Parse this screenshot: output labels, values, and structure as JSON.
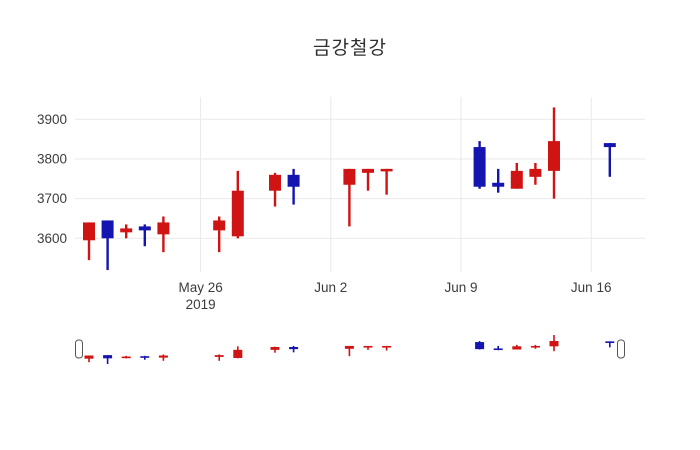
{
  "title": "금강철강",
  "chart_data": {
    "type": "candlestick",
    "title": "금강철강",
    "xlabel": "",
    "ylabel": "",
    "grid": true,
    "y_ticks": [
      3600,
      3700,
      3800,
      3900
    ],
    "y_range": [
      3513,
      3950
    ],
    "x_ticks": [
      {
        "label": "May 26",
        "sublabel": "2019",
        "day": 6
      },
      {
        "label": "Jun 2",
        "sublabel": "",
        "day": 13
      },
      {
        "label": "Jun 9",
        "sublabel": "",
        "day": 20
      },
      {
        "label": "Jun 16",
        "sublabel": "",
        "day": 27
      }
    ],
    "colors": {
      "increasing": "#d01414",
      "decreasing": "#1414b0"
    },
    "rangeslider": true,
    "candles": [
      {
        "date": "May 20",
        "day": 0,
        "open": 3595,
        "high": 3640,
        "low": 3545,
        "close": 3640
      },
      {
        "date": "May 21",
        "day": 1,
        "open": 3645,
        "high": 3645,
        "low": 3520,
        "close": 3600
      },
      {
        "date": "May 22",
        "day": 2,
        "open": 3615,
        "high": 3635,
        "low": 3600,
        "close": 3625
      },
      {
        "date": "May 23",
        "day": 3,
        "open": 3630,
        "high": 3635,
        "low": 3580,
        "close": 3620
      },
      {
        "date": "May 24",
        "day": 4,
        "open": 3610,
        "high": 3655,
        "low": 3565,
        "close": 3640
      },
      {
        "date": "May 27",
        "day": 7,
        "open": 3620,
        "high": 3655,
        "low": 3565,
        "close": 3645
      },
      {
        "date": "May 28",
        "day": 8,
        "open": 3605,
        "high": 3770,
        "low": 3600,
        "close": 3720
      },
      {
        "date": "May 30",
        "day": 10,
        "open": 3720,
        "high": 3765,
        "low": 3680,
        "close": 3760
      },
      {
        "date": "May 31",
        "day": 11,
        "open": 3760,
        "high": 3775,
        "low": 3685,
        "close": 3730
      },
      {
        "date": "Jun 3",
        "day": 14,
        "open": 3735,
        "high": 3775,
        "low": 3630,
        "close": 3775
      },
      {
        "date": "Jun 4",
        "day": 15,
        "open": 3765,
        "high": 3775,
        "low": 3720,
        "close": 3775
      },
      {
        "date": "Jun 5",
        "day": 16,
        "open": 3770,
        "high": 3775,
        "low": 3710,
        "close": 3775
      },
      {
        "date": "Jun 10",
        "day": 21,
        "open": 3830,
        "high": 3845,
        "low": 3725,
        "close": 3730
      },
      {
        "date": "Jun 11",
        "day": 22,
        "open": 3740,
        "high": 3775,
        "low": 3715,
        "close": 3730
      },
      {
        "date": "Jun 12",
        "day": 23,
        "open": 3725,
        "high": 3790,
        "low": 3725,
        "close": 3770
      },
      {
        "date": "Jun 13",
        "day": 24,
        "open": 3755,
        "high": 3790,
        "low": 3735,
        "close": 3775
      },
      {
        "date": "Jun 14",
        "day": 25,
        "open": 3770,
        "high": 3930,
        "low": 3700,
        "close": 3845
      },
      {
        "date": "Jun 17",
        "day": 28,
        "open": 3840,
        "high": 3840,
        "low": 3755,
        "close": 3830
      }
    ]
  }
}
